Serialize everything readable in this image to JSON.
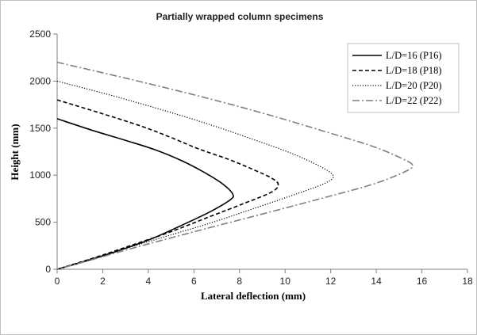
{
  "chart_data": {
    "type": "line",
    "title": "Partially wrapped column specimens",
    "xlabel": "Lateral deflection (mm)",
    "ylabel": "Height (mm)",
    "xlim": [
      0,
      18
    ],
    "ylim": [
      0,
      2500
    ],
    "x_ticks": [
      0,
      2,
      4,
      6,
      8,
      10,
      12,
      14,
      16,
      18
    ],
    "y_ticks": [
      0,
      500,
      1000,
      1500,
      2000,
      2500
    ],
    "grid": false,
    "legend_position": "top-right",
    "series": [
      {
        "name": "L/D=16  (P16)",
        "line_style": "solid",
        "color": "#000000",
        "points": [
          [
            0,
            1600
          ],
          [
            1.5,
            1480
          ],
          [
            3,
            1370
          ],
          [
            4.3,
            1270
          ],
          [
            5.5,
            1150
          ],
          [
            6.6,
            1010
          ],
          [
            7.3,
            900
          ],
          [
            7.7,
            800
          ],
          [
            7.6,
            740
          ],
          [
            6.7,
            610
          ],
          [
            5.4,
            460
          ],
          [
            4,
            310
          ],
          [
            2.6,
            190
          ],
          [
            1.3,
            90
          ],
          [
            0,
            0
          ]
        ]
      },
      {
        "name": "L/D=18  (P18)",
        "line_style": "dashed",
        "color": "#000000",
        "points": [
          [
            0,
            1800
          ],
          [
            1.9,
            1660
          ],
          [
            3.7,
            1520
          ],
          [
            5,
            1400
          ],
          [
            6.2,
            1280
          ],
          [
            7.5,
            1170
          ],
          [
            8.6,
            1060
          ],
          [
            9.4,
            970
          ],
          [
            9.7,
            900
          ],
          [
            9.4,
            820
          ],
          [
            8.2,
            700
          ],
          [
            6.7,
            560
          ],
          [
            5,
            400
          ],
          [
            3.2,
            250
          ],
          [
            1.6,
            120
          ],
          [
            0,
            0
          ]
        ]
      },
      {
        "name": "L/D=20  (P20)",
        "line_style": "dotted",
        "color": "#000000",
        "points": [
          [
            0,
            2000
          ],
          [
            2.5,
            1840
          ],
          [
            4.8,
            1680
          ],
          [
            6.8,
            1530
          ],
          [
            8.6,
            1380
          ],
          [
            10.2,
            1240
          ],
          [
            11.4,
            1110
          ],
          [
            12.1,
            1000
          ],
          [
            11.8,
            920
          ],
          [
            10.6,
            810
          ],
          [
            8.8,
            660
          ],
          [
            6.7,
            490
          ],
          [
            4.5,
            330
          ],
          [
            2.3,
            170
          ],
          [
            0,
            0
          ]
        ]
      },
      {
        "name": "L/D=22  (P22)",
        "line_style": "dash-dot",
        "color": "#7f7f7f",
        "points": [
          [
            0,
            2200
          ],
          [
            3.2,
            2020
          ],
          [
            6.4,
            1830
          ],
          [
            9.3,
            1640
          ],
          [
            11.8,
            1460
          ],
          [
            13.8,
            1310
          ],
          [
            15.1,
            1180
          ],
          [
            15.6,
            1100
          ],
          [
            15.1,
            1020
          ],
          [
            13.8,
            900
          ],
          [
            11.7,
            760
          ],
          [
            9.2,
            600
          ],
          [
            6.5,
            430
          ],
          [
            3.7,
            250
          ],
          [
            1.5,
            100
          ],
          [
            0,
            0
          ]
        ]
      }
    ]
  }
}
